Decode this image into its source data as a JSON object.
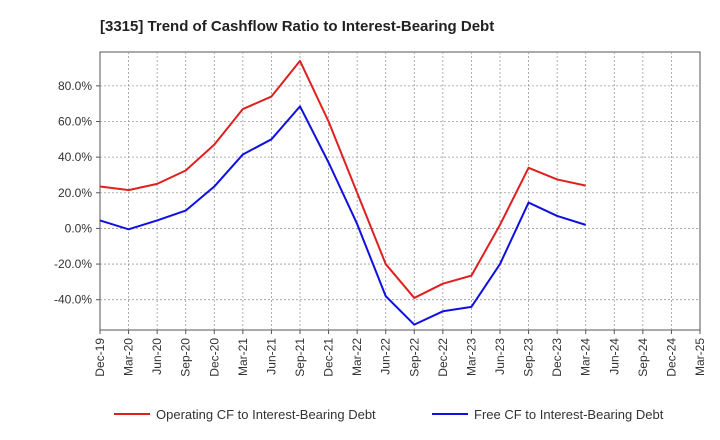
{
  "chart_data": {
    "type": "line",
    "title": "[3315]  Trend of Cashflow Ratio to Interest-Bearing Debt",
    "xlabel": "",
    "ylabel": "",
    "categories": [
      "Dec-19",
      "Mar-20",
      "Jun-20",
      "Sep-20",
      "Dec-20",
      "Mar-21",
      "Jun-21",
      "Sep-21",
      "Dec-21",
      "Mar-22",
      "Jun-22",
      "Sep-22",
      "Dec-22",
      "Mar-23",
      "Jun-23",
      "Sep-23",
      "Dec-23",
      "Mar-24",
      "Jun-24",
      "Sep-24",
      "Dec-24",
      "Mar-25"
    ],
    "y_ticks": [
      -40,
      -20,
      0,
      20,
      40,
      60,
      80
    ],
    "y_tick_labels": [
      "-40.0%",
      "-20.0%",
      "0.0%",
      "20.0%",
      "40.0%",
      "60.0%",
      "80.0%"
    ],
    "ylim": [
      -57,
      99
    ],
    "grid": true,
    "legend_position": "bottom",
    "series": [
      {
        "name": "Operating CF to Interest-Bearing Debt",
        "color": "#e02020",
        "values": [
          23.5,
          21.5,
          25.0,
          32.5,
          47.0,
          67.0,
          74.0,
          94.0,
          60.0,
          20.0,
          -20.0,
          -39.0,
          -31.0,
          -26.5,
          2.0,
          34.0,
          27.5,
          24.0,
          null,
          null,
          null,
          null
        ]
      },
      {
        "name": "Free CF to Interest-Bearing Debt",
        "color": "#1010e0",
        "values": [
          4.5,
          -0.5,
          4.5,
          10.0,
          23.5,
          41.5,
          50.0,
          68.5,
          37.0,
          2.5,
          -38.0,
          -54.0,
          -46.5,
          -44.0,
          -20.0,
          14.5,
          7.0,
          2.0,
          null,
          null,
          null,
          null
        ]
      }
    ]
  }
}
